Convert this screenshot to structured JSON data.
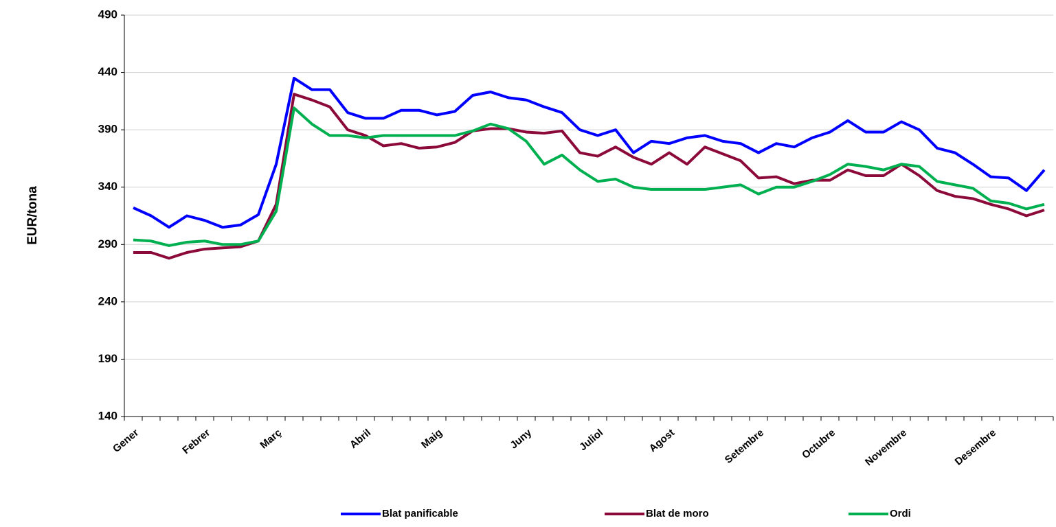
{
  "chart_data": {
    "type": "line",
    "y_label": "EUR/tona",
    "categories": [
      "Gener",
      null,
      null,
      null,
      "Febrer",
      null,
      null,
      null,
      "Març",
      null,
      null,
      null,
      null,
      "Abril",
      null,
      null,
      null,
      "Maig",
      null,
      null,
      null,
      null,
      "Juny",
      null,
      null,
      null,
      "Juliol",
      null,
      null,
      null,
      "Agost",
      null,
      null,
      null,
      null,
      "Setembre",
      null,
      null,
      null,
      "Octubre",
      null,
      null,
      null,
      "Novembre",
      null,
      null,
      null,
      null,
      "Desembre",
      null,
      null,
      null
    ],
    "series": [
      {
        "name": "Blat panificable",
        "color": "#0000ff",
        "values": [
          322,
          315,
          305,
          315,
          311,
          305,
          307,
          316,
          360,
          435,
          425,
          425,
          405,
          400,
          400,
          407,
          407,
          403,
          406,
          420,
          423,
          418,
          416,
          410,
          405,
          390,
          385,
          390,
          370,
          380,
          378,
          383,
          385,
          380,
          378,
          370,
          378,
          375,
          383,
          388,
          398,
          388,
          388,
          397,
          390,
          374,
          370,
          360,
          349,
          348,
          337,
          355
        ]
      },
      {
        "name": "Blat de moro",
        "color": "#8b0a3a",
        "values": [
          283,
          283,
          278,
          283,
          286,
          287,
          288,
          293,
          325,
          421,
          416,
          410,
          390,
          385,
          376,
          378,
          374,
          375,
          379,
          389,
          391,
          391,
          388,
          387,
          389,
          370,
          367,
          375,
          366,
          360,
          370,
          360,
          375,
          369,
          363,
          348,
          349,
          343,
          346,
          346,
          355,
          350,
          350,
          360,
          350,
          337,
          332,
          330,
          325,
          321,
          315,
          320
        ]
      },
      {
        "name": "Ordi",
        "color": "#00b050",
        "values": [
          294,
          293,
          289,
          292,
          293,
          290,
          290,
          293,
          319,
          409,
          395,
          385,
          385,
          383,
          385,
          385,
          385,
          385,
          385,
          389,
          395,
          391,
          380,
          360,
          368,
          355,
          345,
          347,
          340,
          338,
          338,
          338,
          338,
          340,
          342,
          334,
          340,
          340,
          345,
          351,
          360,
          358,
          355,
          360,
          358,
          345,
          342,
          339,
          328,
          326,
          321,
          325
        ]
      }
    ],
    "ylim": [
      140,
      490
    ],
    "yticks": [
      140,
      190,
      240,
      290,
      340,
      390,
      440,
      490
    ],
    "grid": true,
    "legend": "bottom"
  }
}
